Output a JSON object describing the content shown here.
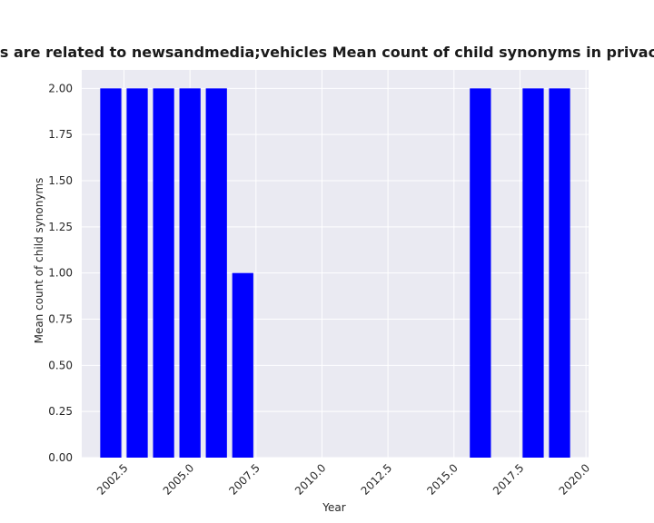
{
  "chart_data": {
    "type": "bar",
    "title": "Categories are related to newsandmedia;vehicles Mean count of child synonyms in privacy policies",
    "xlabel": "Year",
    "ylabel": "Mean count of child synonyms",
    "x": [
      2002,
      2003,
      2004,
      2005,
      2006,
      2007,
      2016,
      2018,
      2019
    ],
    "values": [
      2,
      2,
      2,
      2,
      2,
      1,
      2,
      2,
      2
    ],
    "bar_color": "#0000ff",
    "xlim": [
      2000.9,
      2020.1
    ],
    "ylim": [
      0,
      2.1
    ],
    "xticks": [
      "2002.5",
      "2005.0",
      "2007.5",
      "2010.0",
      "2012.5",
      "2015.0",
      "2017.5",
      "2020.0"
    ],
    "yticks": [
      "0.00",
      "0.25",
      "0.50",
      "0.75",
      "1.00",
      "1.25",
      "1.50",
      "1.75",
      "2.00"
    ],
    "grid": true,
    "background": "#eaeaf2"
  }
}
